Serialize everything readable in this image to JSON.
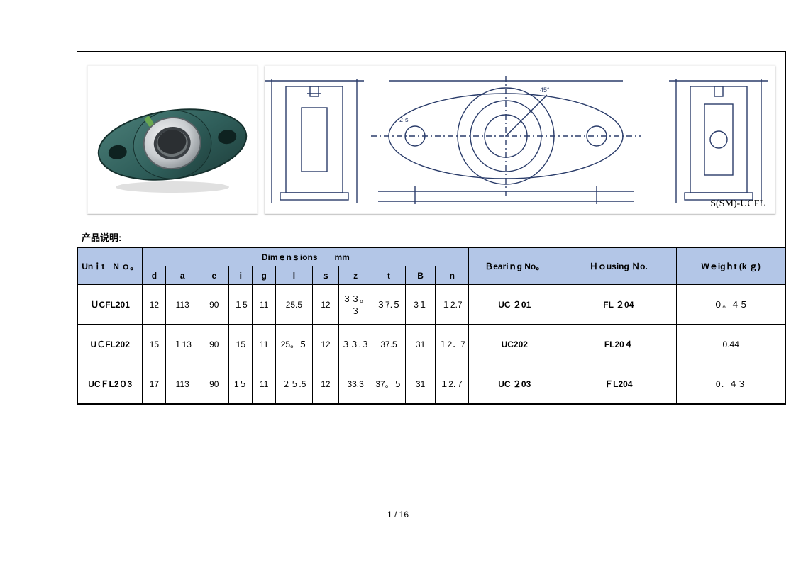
{
  "section_label": "产品说明:",
  "drawing_label": "S(SM)-UCFL",
  "page_number": "1 / 16",
  "photo": {
    "body_color": "#2f5e5a",
    "bore_color": "#c9cdd0",
    "ring_color": "#8a9094",
    "bolt_color": "#6aa84f"
  },
  "drawing_colors": {
    "line": "#2a3c6a",
    "bg": "#ffffff"
  },
  "table": {
    "header_bg": "#b3c6e7",
    "unit_header": "Unｉt　N\nｏ。",
    "dim_header": "Dimｅnｓions　　mm",
    "bearing_header": "Ｂeariｎg\nNo。",
    "housing_header": "Ｈｏusing Ｎo.",
    "weight_header": "Wｅigｈt (k\nｇ)",
    "dim_cols": [
      "d",
      "a",
      "e",
      "i",
      "g",
      "l",
      "ｓ",
      "z",
      "t",
      "B",
      "n"
    ],
    "col_widths": {
      "unit": 78,
      "d": 28,
      "a": 40,
      "e": 36,
      "i": 28,
      "g": 28,
      "l": 44,
      "s": 32,
      "z": 40,
      "t": 40,
      "B": 36,
      "n": 40,
      "bearing": 110,
      "housing": 140,
      "weight": 130
    },
    "rows": [
      {
        "unit": "ＵCFL201",
        "d": "12",
        "a": "113",
        "e": "90",
        "i": "１5",
        "g": "11",
        "l": "25.5",
        "s": "12",
        "z": "３３。３",
        "t": "３7.５",
        "B": "3１",
        "n": "１2.7",
        "bearing": "UC ２01",
        "housing": "FL ２04",
        "weight": "０。４５"
      },
      {
        "unit": "UＣFL202",
        "d": "15",
        "a": "１13",
        "e": "90",
        "i": "15",
        "g": "11",
        "l": "25。５",
        "s": "12",
        "z": "３３.３",
        "t": "37.5",
        "B": "31",
        "n": "１2．7",
        "bearing": "UC202",
        "housing": "FL20４",
        "weight": "0.44"
      },
      {
        "unit": "UCＦL2０3",
        "d": "17",
        "a": "113",
        "e": "90",
        "i": "1５",
        "g": "11",
        "l": "２５.5",
        "s": "12",
        "z": "33.3",
        "t": "37。５",
        "B": "31",
        "n": "１2.７",
        "bearing": "UC ２03",
        "housing": "ＦL204",
        "weight": "0．４３"
      }
    ]
  }
}
